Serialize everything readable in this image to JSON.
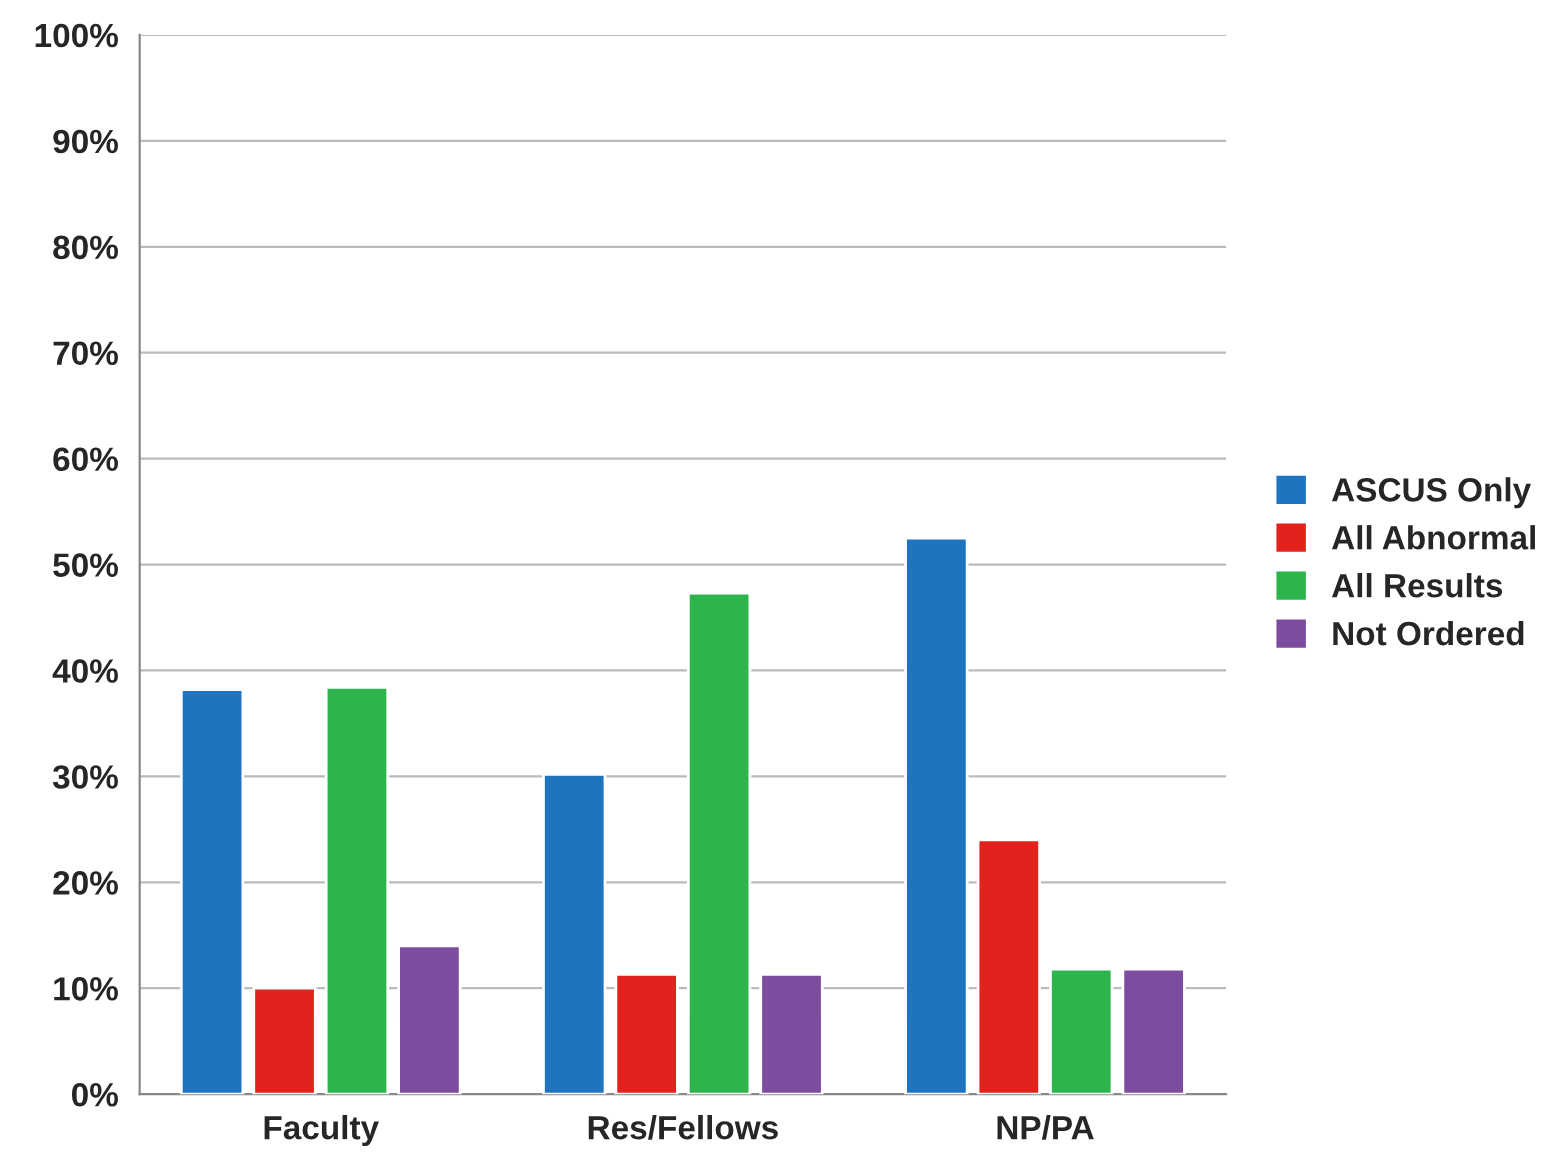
{
  "chart_data": {
    "type": "bar",
    "categories": [
      "Faculty",
      "Res/Fellows",
      "NP/PA"
    ],
    "series": [
      {
        "name": "ASCUS Only",
        "color": "#1f74c0",
        "values": [
          38.2,
          30.2,
          52.5
        ]
      },
      {
        "name": "All Abnormal",
        "color": "#e2221c",
        "values": [
          10,
          11.3,
          24
        ]
      },
      {
        "name": "All Results",
        "color": "#2db44c",
        "values": [
          38.4,
          47.3,
          11.8
        ]
      },
      {
        "name": "Not Ordered",
        "color": "#7e4c9e",
        "values": [
          14,
          11.3,
          11.8
        ]
      }
    ],
    "ylim": [
      0,
      100
    ],
    "yticks": [
      {
        "value": 0,
        "label": "0%"
      },
      {
        "value": 10,
        "label": "10%"
      },
      {
        "value": 20,
        "label": "20%"
      },
      {
        "value": 30,
        "label": "30%"
      },
      {
        "value": 40,
        "label": "40%"
      },
      {
        "value": 50,
        "label": "50%"
      },
      {
        "value": 60,
        "label": "60%"
      },
      {
        "value": 70,
        "label": "70%"
      },
      {
        "value": 80,
        "label": "80%"
      },
      {
        "value": 90,
        "label": "90%"
      },
      {
        "value": 100,
        "label": "100%"
      }
    ],
    "grid": "y",
    "legend": "right"
  }
}
